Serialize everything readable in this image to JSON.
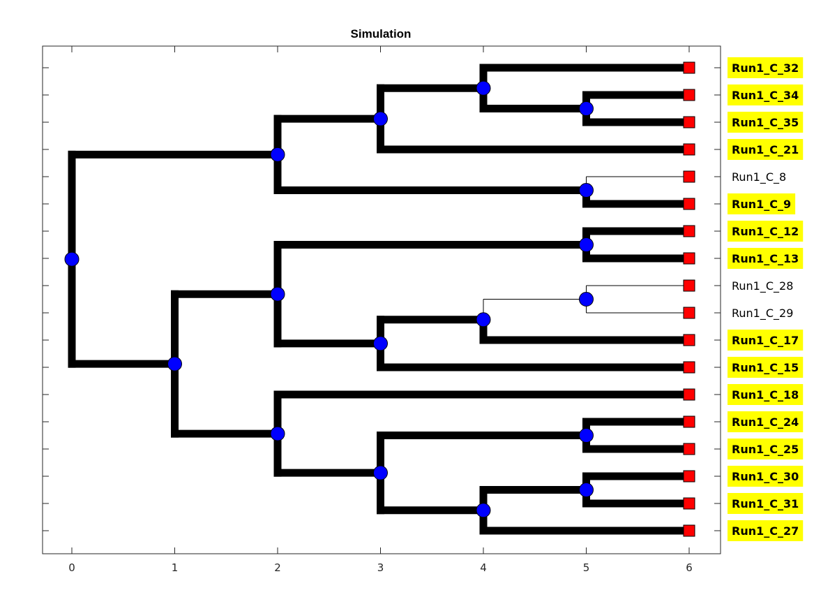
{
  "title": "Simulation",
  "x_ticks": [
    "0",
    "1",
    "2",
    "3",
    "4",
    "5",
    "6"
  ],
  "colors": {
    "branch": "#000000",
    "internal_node": "#0000ff",
    "leaf_node": "#ff0000",
    "highlight": "#ffff00"
  },
  "leaves": [
    {
      "label": "Run1_C_32",
      "highlighted": true
    },
    {
      "label": "Run1_C_34",
      "highlighted": true
    },
    {
      "label": "Run1_C_35",
      "highlighted": true
    },
    {
      "label": "Run1_C_21",
      "highlighted": true
    },
    {
      "label": "Run1_C_8",
      "highlighted": false
    },
    {
      "label": "Run1_C_9",
      "highlighted": true
    },
    {
      "label": "Run1_C_12",
      "highlighted": true
    },
    {
      "label": "Run1_C_13",
      "highlighted": true
    },
    {
      "label": "Run1_C_28",
      "highlighted": false
    },
    {
      "label": "Run1_C_29",
      "highlighted": false
    },
    {
      "label": "Run1_C_17",
      "highlighted": true
    },
    {
      "label": "Run1_C_15",
      "highlighted": true
    },
    {
      "label": "Run1_C_18",
      "highlighted": true
    },
    {
      "label": "Run1_C_24",
      "highlighted": true
    },
    {
      "label": "Run1_C_25",
      "highlighted": true
    },
    {
      "label": "Run1_C_30",
      "highlighted": true
    },
    {
      "label": "Run1_C_31",
      "highlighted": true
    },
    {
      "label": "Run1_C_27",
      "highlighted": true
    }
  ],
  "tree": {
    "depth": 0,
    "bold": true,
    "children": [
      {
        "depth": 2,
        "bold": true,
        "children": [
          {
            "depth": 3,
            "bold": true,
            "children": [
              {
                "depth": 4,
                "bold": true,
                "children": [
                  {
                    "leaf": 0,
                    "bold": true
                  },
                  {
                    "depth": 5,
                    "bold": true,
                    "children": [
                      {
                        "leaf": 1,
                        "bold": true
                      },
                      {
                        "leaf": 2,
                        "bold": true
                      }
                    ]
                  }
                ]
              },
              {
                "leaf": 3,
                "bold": true
              }
            ]
          },
          {
            "depth": 5,
            "bold": true,
            "children": [
              {
                "leaf": 4,
                "bold": false
              },
              {
                "leaf": 5,
                "bold": true
              }
            ]
          }
        ]
      },
      {
        "depth": 1,
        "bold": true,
        "children": [
          {
            "depth": 2,
            "bold": true,
            "children": [
              {
                "depth": 5,
                "bold": true,
                "children": [
                  {
                    "leaf": 6,
                    "bold": true
                  },
                  {
                    "leaf": 7,
                    "bold": true
                  }
                ]
              },
              {
                "depth": 3,
                "bold": true,
                "children": [
                  {
                    "depth": 4,
                    "bold": true,
                    "children": [
                      {
                        "depth": 5,
                        "bold": false,
                        "children": [
                          {
                            "leaf": 8,
                            "bold": false
                          },
                          {
                            "leaf": 9,
                            "bold": false
                          }
                        ]
                      },
                      {
                        "leaf": 10,
                        "bold": true
                      }
                    ]
                  },
                  {
                    "leaf": 11,
                    "bold": true
                  }
                ]
              }
            ]
          },
          {
            "depth": 2,
            "bold": true,
            "children": [
              {
                "leaf": 12,
                "bold": true
              },
              {
                "depth": 3,
                "bold": true,
                "children": [
                  {
                    "depth": 5,
                    "bold": true,
                    "children": [
                      {
                        "leaf": 13,
                        "bold": true
                      },
                      {
                        "leaf": 14,
                        "bold": true
                      }
                    ]
                  },
                  {
                    "depth": 4,
                    "bold": true,
                    "children": [
                      {
                        "depth": 5,
                        "bold": true,
                        "children": [
                          {
                            "leaf": 15,
                            "bold": true
                          },
                          {
                            "leaf": 16,
                            "bold": true
                          }
                        ]
                      },
                      {
                        "leaf": 17,
                        "bold": true
                      }
                    ]
                  }
                ]
              }
            ]
          }
        ]
      }
    ]
  }
}
